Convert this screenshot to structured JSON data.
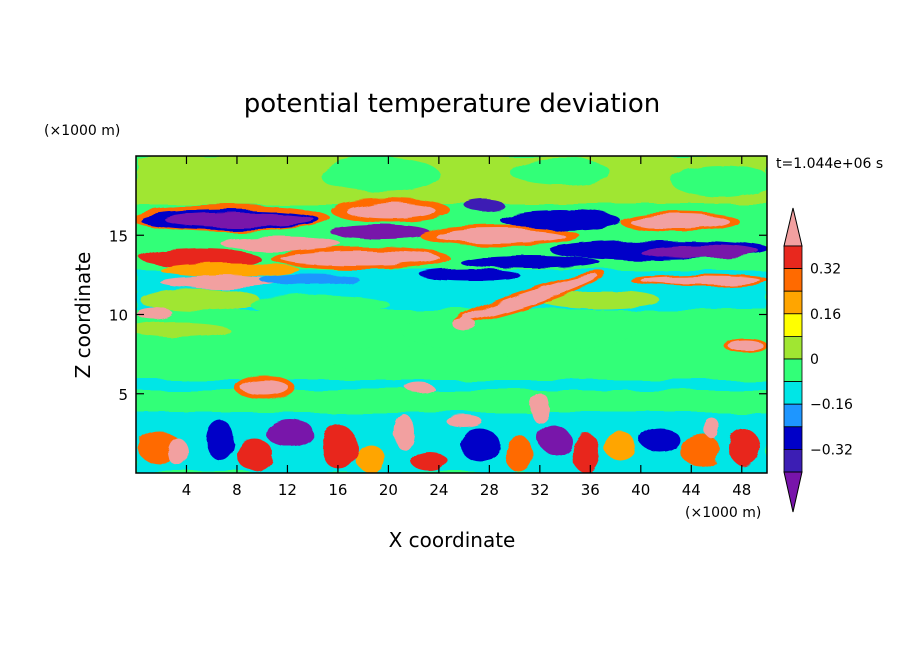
{
  "chart_data": {
    "type": "heatmap",
    "title": "potential temperature deviation",
    "xlabel": "X coordinate",
    "ylabel": "Z coordinate",
    "x_unit": "(×1000 m)",
    "y_unit": "(×1000 m)",
    "time_label": "t=1.044e+06 s",
    "xlim": [
      0,
      50
    ],
    "ylim": [
      0,
      20
    ],
    "x_ticks": [
      4,
      8,
      12,
      16,
      20,
      24,
      28,
      32,
      36,
      40,
      44,
      48
    ],
    "y_ticks": [
      5,
      10,
      15
    ],
    "colorbar": {
      "levels": [
        -0.4,
        -0.32,
        -0.24,
        -0.16,
        -0.08,
        0,
        0.08,
        0.16,
        0.24,
        0.32,
        0.4
      ],
      "tick_labels": [
        "0.32",
        "0.16",
        "0",
        "−0.16",
        "−0.32"
      ],
      "tick_values": [
        0.32,
        0.16,
        0,
        -0.16,
        -0.32
      ],
      "colors_top_to_bottom": [
        "#f2a0a0",
        "#e8281e",
        "#ff6a00",
        "#ffa500",
        "#ffff00",
        "#a0e632",
        "#32ff78",
        "#00e6e6",
        "#1e96ff",
        "#0000c8",
        "#3c1eb4",
        "#7814aa"
      ],
      "extend": "both"
    },
    "grid": false
  }
}
